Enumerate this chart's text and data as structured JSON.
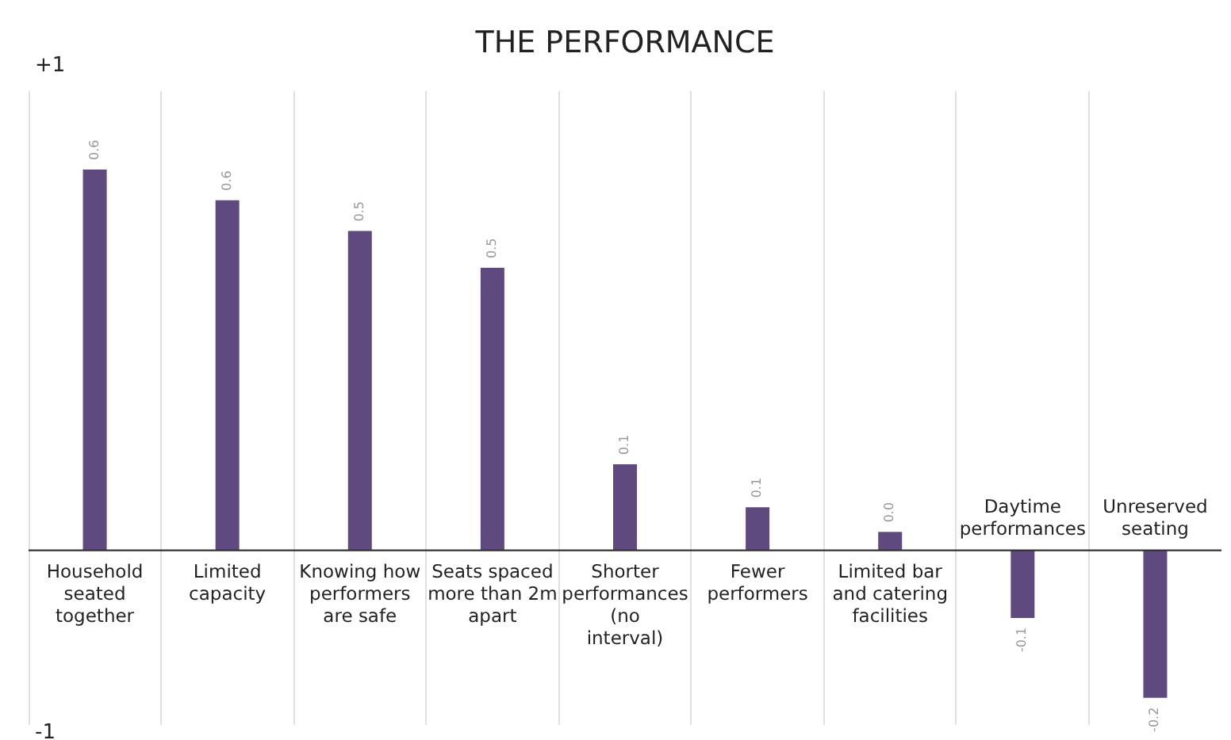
{
  "chart_data": {
    "type": "bar",
    "title": "THE PERFORMANCE",
    "grid": "x",
    "categories": [
      "Household seated together",
      "Limited capacity",
      "Knowing how performers are safe",
      "Seats spaced more than 2m apart",
      "Shorter performances (no interval)",
      "Fewer performers",
      "Limited bar and catering facilities",
      "Daytime performances",
      "Unreserved seating"
    ],
    "values": [
      0.62,
      0.57,
      0.52,
      0.46,
      0.14,
      0.07,
      0.03,
      -0.11,
      -0.24
    ],
    "value_labels": [
      "0.6",
      "0.6",
      "0.5",
      "0.5",
      "0.1",
      "0.1",
      "0.0",
      "-0.1",
      "-0.2"
    ],
    "color": "#5e4a7e",
    "annotations": [
      "+1",
      "-1"
    ]
  }
}
